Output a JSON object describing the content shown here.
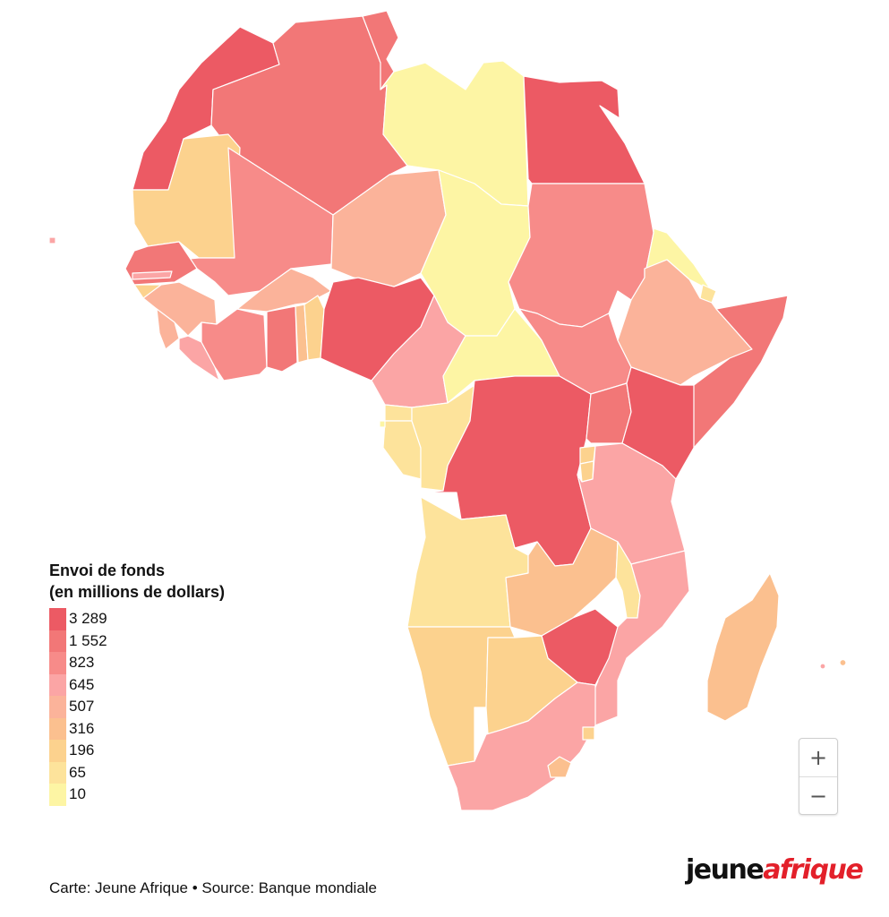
{
  "map": {
    "title": "",
    "countries": [
      {
        "name": "Morocco",
        "value_band": 3289
      },
      {
        "name": "Algeria",
        "value_band": 1552
      },
      {
        "name": "Tunisia",
        "value_band": 1552
      },
      {
        "name": "Libya",
        "value_band": 10
      },
      {
        "name": "Egypt",
        "value_band": 3289
      },
      {
        "name": "Mauritania",
        "value_band": 196
      },
      {
        "name": "Mali",
        "value_band": 823
      },
      {
        "name": "Niger",
        "value_band": 507
      },
      {
        "name": "Chad",
        "value_band": 10
      },
      {
        "name": "Sudan",
        "value_band": 823
      },
      {
        "name": "Eritrea",
        "value_band": 10
      },
      {
        "name": "Djibouti",
        "value_band": 65
      },
      {
        "name": "Ethiopia",
        "value_band": 507
      },
      {
        "name": "Somalia",
        "value_band": 1552
      },
      {
        "name": "Senegal",
        "value_band": 1552
      },
      {
        "name": "Gambia",
        "value_band": 645
      },
      {
        "name": "Guinea-Bissau",
        "value_band": 196
      },
      {
        "name": "Guinea",
        "value_band": 507
      },
      {
        "name": "Sierra Leone",
        "value_band": 507
      },
      {
        "name": "Liberia",
        "value_band": 645
      },
      {
        "name": "Cote d'Ivoire",
        "value_band": 823
      },
      {
        "name": "Burkina Faso",
        "value_band": 507
      },
      {
        "name": "Ghana",
        "value_band": 1552
      },
      {
        "name": "Togo",
        "value_band": 316
      },
      {
        "name": "Benin",
        "value_band": 196
      },
      {
        "name": "Nigeria",
        "value_band": 3289
      },
      {
        "name": "Cameroon",
        "value_band": 645
      },
      {
        "name": "Central African Republic",
        "value_band": 10
      },
      {
        "name": "South Sudan",
        "value_band": 823
      },
      {
        "name": "Equatorial Guinea",
        "value_band": 65
      },
      {
        "name": "Gabon",
        "value_band": 65
      },
      {
        "name": "Republic of the Congo",
        "value_band": 65
      },
      {
        "name": "DR Congo",
        "value_band": 3289
      },
      {
        "name": "Uganda",
        "value_band": 1552
      },
      {
        "name": "Kenya",
        "value_band": 3289
      },
      {
        "name": "Rwanda",
        "value_band": 196
      },
      {
        "name": "Burundi",
        "value_band": 196
      },
      {
        "name": "Tanzania",
        "value_band": 645
      },
      {
        "name": "Angola",
        "value_band": 65
      },
      {
        "name": "Zambia",
        "value_band": 316
      },
      {
        "name": "Malawi",
        "value_band": 65
      },
      {
        "name": "Mozambique",
        "value_band": 645
      },
      {
        "name": "Zimbabwe",
        "value_band": 3289
      },
      {
        "name": "Namibia",
        "value_band": 196
      },
      {
        "name": "Botswana",
        "value_band": 196
      },
      {
        "name": "South Africa",
        "value_band": 645
      },
      {
        "name": "Lesotho",
        "value_band": 316
      },
      {
        "name": "Eswatini",
        "value_band": 196
      },
      {
        "name": "Madagascar",
        "value_band": 316
      },
      {
        "name": "Cape Verde",
        "value_band": 645
      },
      {
        "name": "Comoros",
        "value_band": 645
      },
      {
        "name": "Mauritius",
        "value_band": 316
      },
      {
        "name": "Sao Tome and Principe",
        "value_band": 10
      }
    ]
  },
  "legend": {
    "title_line1": "Envoi de fonds",
    "title_line2": "(en millions de dollars)",
    "items": [
      {
        "label": "3 289",
        "color": "#ec5a64"
      },
      {
        "label": "1 552",
        "color": "#f27777"
      },
      {
        "label": "823",
        "color": "#f78b89"
      },
      {
        "label": "645",
        "color": "#fba5a5"
      },
      {
        "label": "507",
        "color": "#fbb39a"
      },
      {
        "label": "316",
        "color": "#fbc08f"
      },
      {
        "label": "196",
        "color": "#fcd28e"
      },
      {
        "label": "65",
        "color": "#fde39b"
      },
      {
        "label": "10",
        "color": "#fdf5a4"
      }
    ]
  },
  "zoom": {
    "in_label": "+",
    "out_label": "−"
  },
  "footer": {
    "credit": "Carte: Jeune Afrique • Source: Banque mondiale",
    "logo_part1": "jeune",
    "logo_part2": "afrique"
  }
}
